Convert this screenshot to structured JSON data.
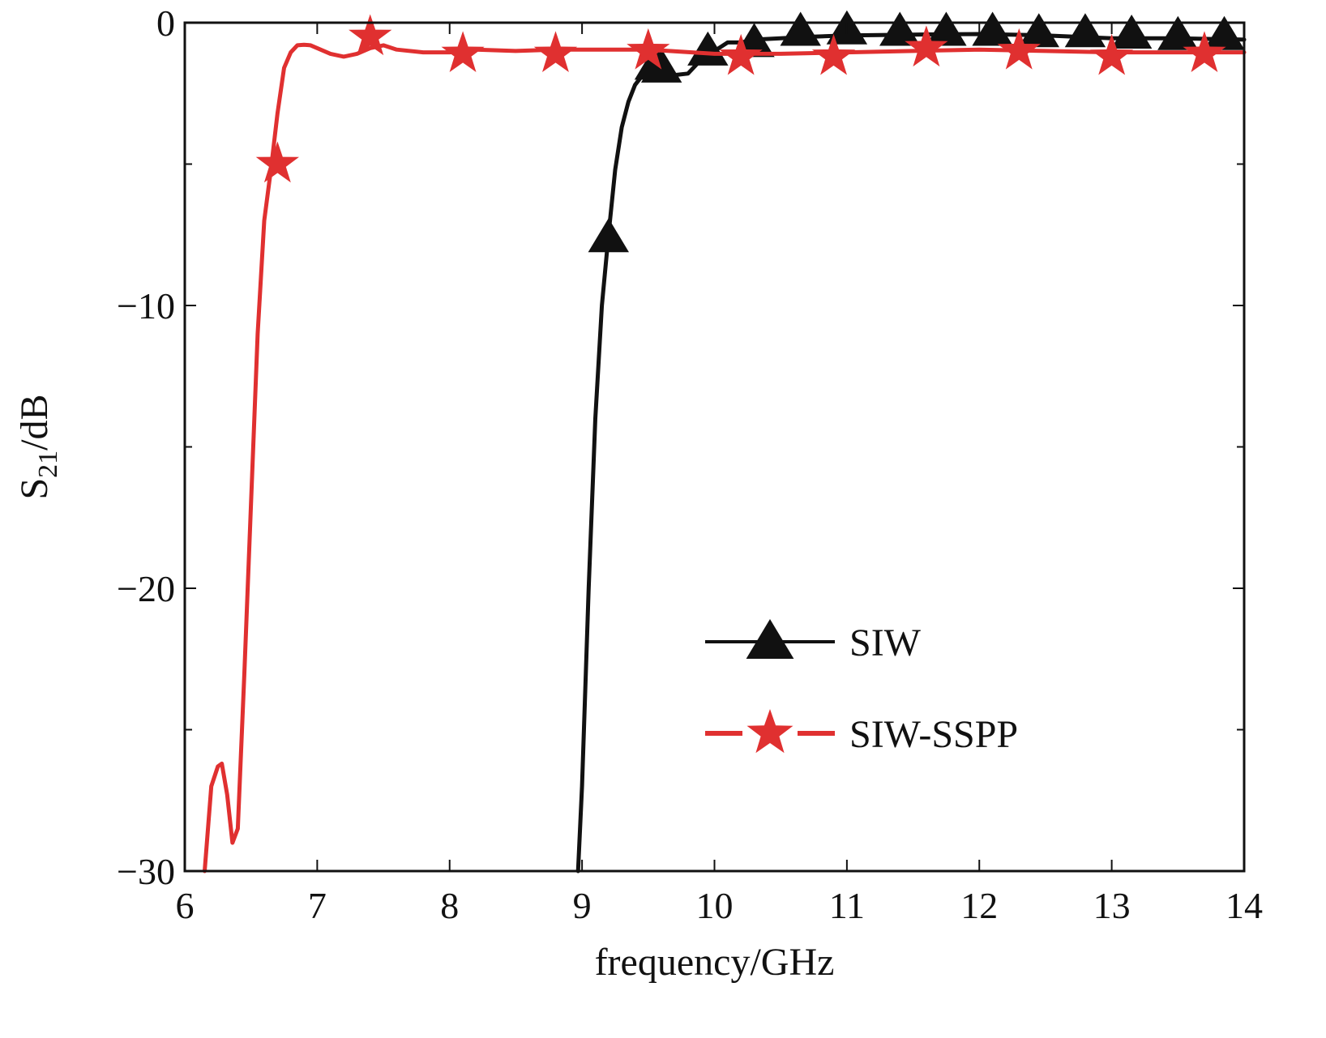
{
  "chart_data": {
    "type": "line",
    "title": "",
    "xlabel": "frequency/GHz",
    "ylabel": {
      "main": "S",
      "sub": "21",
      "unit": "/dB"
    },
    "xlim": [
      6,
      14
    ],
    "ylim": [
      -30,
      0
    ],
    "x_ticks": [
      6,
      7,
      8,
      9,
      10,
      11,
      12,
      13,
      14
    ],
    "y_ticks": [
      0,
      -10,
      -20,
      -30
    ],
    "y_tick_labels": [
      "0",
      "−10",
      "−20",
      "−30"
    ],
    "grid": false,
    "legend_position": "lower-right",
    "series": [
      {
        "name": "SIW",
        "color": "#111111",
        "marker": "triangle",
        "x": [
          8.97,
          9.0,
          9.05,
          9.1,
          9.15,
          9.2,
          9.25,
          9.3,
          9.35,
          9.4,
          9.45,
          9.5,
          9.55,
          9.6,
          9.7,
          9.8,
          9.9,
          10.0,
          10.1,
          10.2,
          10.3,
          10.5,
          10.7,
          11.0,
          11.5,
          12.0,
          12.5,
          13.0,
          13.5,
          14.0
        ],
        "y": [
          -30,
          -27,
          -20,
          -14,
          -10,
          -7.5,
          -5.2,
          -3.7,
          -2.8,
          -2.2,
          -1.9,
          -1.7,
          -1.7,
          -1.8,
          -1.85,
          -1.8,
          -1.3,
          -1.0,
          -0.7,
          -0.7,
          -0.6,
          -0.55,
          -0.5,
          -0.45,
          -0.42,
          -0.4,
          -0.45,
          -0.55,
          -0.55,
          -0.6
        ],
        "marker_x": [
          9.2,
          9.55,
          9.6,
          9.95,
          10.3,
          10.65,
          11.0,
          11.4,
          11.75,
          12.1,
          12.45,
          12.8,
          13.15,
          13.5,
          13.85
        ],
        "marker_y": [
          -7.6,
          -1.5,
          -1.6,
          -1.0,
          -0.7,
          -0.3,
          -0.25,
          -0.3,
          -0.3,
          -0.3,
          -0.35,
          -0.35,
          -0.4,
          -0.45,
          -0.45
        ]
      },
      {
        "name": "SIW-SSPP",
        "color": "#e03030",
        "marker": "star",
        "x": [
          6.15,
          6.2,
          6.25,
          6.28,
          6.32,
          6.36,
          6.4,
          6.45,
          6.5,
          6.55,
          6.6,
          6.65,
          6.7,
          6.75,
          6.8,
          6.85,
          6.9,
          6.95,
          7.0,
          7.1,
          7.2,
          7.3,
          7.4,
          7.5,
          7.6,
          7.8,
          8.0,
          8.2,
          8.5,
          8.8,
          9.2,
          9.5,
          10.0,
          10.2,
          10.5,
          11.0,
          11.5,
          12.0,
          12.5,
          13.0,
          13.5,
          14.0
        ],
        "y": [
          -30,
          -27,
          -26.3,
          -26.2,
          -27.3,
          -29.0,
          -28.5,
          -23.0,
          -17.0,
          -11.0,
          -7.0,
          -5.2,
          -3.2,
          -1.6,
          -1.05,
          -0.8,
          -0.78,
          -0.8,
          -0.9,
          -1.1,
          -1.2,
          -1.1,
          -0.9,
          -0.8,
          -0.95,
          -1.05,
          -1.05,
          -0.95,
          -1.0,
          -0.95,
          -0.95,
          -0.95,
          -1.1,
          -1.1,
          -1.1,
          -1.05,
          -1.0,
          -0.95,
          -1.0,
          -1.05,
          -1.05,
          -1.05
        ],
        "marker_x": [
          6.7,
          7.4,
          8.1,
          8.8,
          9.5,
          10.2,
          10.9,
          11.6,
          12.3,
          13.0,
          13.7
        ],
        "marker_y": [
          -5.0,
          -0.5,
          -1.1,
          -1.1,
          -1.0,
          -1.2,
          -1.2,
          -0.9,
          -1.0,
          -1.2,
          -1.1
        ]
      }
    ]
  }
}
